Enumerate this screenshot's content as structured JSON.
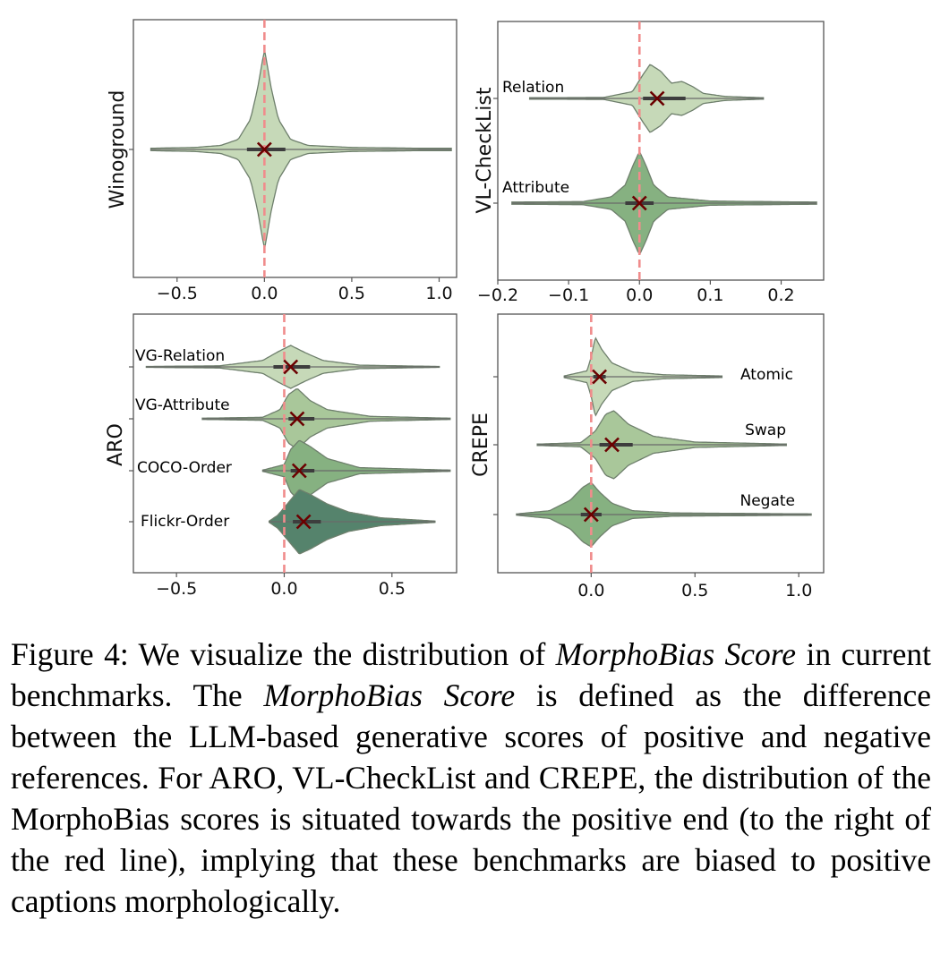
{
  "caption": {
    "label": "Figure 4:",
    "s1": " We visualize the distribution of ",
    "term1": "MorphoBias Score",
    "s2": " in current benchmarks. The ",
    "term2": "MorphoBias Score",
    "s3": " is defined as the difference between the LLM-based generative scores of positive and negative references. For ARO, VL-CheckList and CREPE, the distribution of the MorphoBias scores is situated towards the positive end (to the right of the red line), implying that these benchmarks are biased to positive captions morphologically."
  },
  "colors": {
    "reference_line": "#f08c8c",
    "axes": "#555555",
    "median_marker": "#6b0000",
    "violin_edge": "#6e7f6c",
    "shade_light": "#c6d9b8",
    "shade_mid": "#a9c79a",
    "shade_green": "#86b181",
    "shade_dark": "#55836c"
  },
  "chart_data": [
    {
      "type": "violin",
      "ylabel": "Winoground",
      "xlim": [
        -0.75,
        1.1
      ],
      "xticks": [
        -0.5,
        0.0,
        0.5,
        1.0
      ],
      "xtick_labels": [
        "−0.5",
        "0.0",
        "0.5",
        "1.0"
      ],
      "reference_line_x": 0.0,
      "grid": false,
      "series": [
        {
          "label": "",
          "shade": "shade_light",
          "median": 0.0,
          "q1": -0.1,
          "q3": 0.12,
          "min": -0.65,
          "max": 1.07,
          "density": [
            [
              -0.65,
              0.012
            ],
            [
              -0.4,
              0.02
            ],
            [
              -0.25,
              0.04
            ],
            [
              -0.15,
              0.1
            ],
            [
              -0.08,
              0.3
            ],
            [
              -0.04,
              0.6
            ],
            [
              0.0,
              1.0
            ],
            [
              0.04,
              0.6
            ],
            [
              0.08,
              0.3
            ],
            [
              0.15,
              0.1
            ],
            [
              0.25,
              0.04
            ],
            [
              0.5,
              0.02
            ],
            [
              0.75,
              0.015
            ],
            [
              1.07,
              0.008
            ]
          ]
        }
      ]
    },
    {
      "type": "violin",
      "ylabel": "VL-CheckList",
      "xlim": [
        -0.2,
        0.26
      ],
      "xticks": [
        -0.2,
        -0.1,
        0.0,
        0.1,
        0.2
      ],
      "xtick_labels": [
        "−0.2",
        "−0.1",
        "0.0",
        "0.1",
        "0.2"
      ],
      "reference_line_x": 0.0,
      "grid": false,
      "series": [
        {
          "label": "Relation",
          "shade": "shade_light",
          "median": 0.025,
          "q1": 0.005,
          "q3": 0.065,
          "min": -0.155,
          "max": 0.175,
          "density": [
            [
              -0.155,
              0.02
            ],
            [
              -0.05,
              0.03
            ],
            [
              -0.01,
              0.2
            ],
            [
              0.005,
              0.7
            ],
            [
              0.015,
              1.0
            ],
            [
              0.03,
              0.8
            ],
            [
              0.045,
              0.45
            ],
            [
              0.06,
              0.5
            ],
            [
              0.075,
              0.35
            ],
            [
              0.09,
              0.15
            ],
            [
              0.12,
              0.06
            ],
            [
              0.175,
              0.02
            ]
          ]
        },
        {
          "label": "Attribute",
          "shade": "shade_green",
          "median": 0.0,
          "q1": -0.02,
          "q3": 0.02,
          "min": -0.18,
          "max": 0.25,
          "density": [
            [
              -0.18,
              0.02
            ],
            [
              -0.08,
              0.03
            ],
            [
              -0.04,
              0.12
            ],
            [
              -0.02,
              0.35
            ],
            [
              -0.01,
              0.7
            ],
            [
              0.0,
              1.0
            ],
            [
              0.01,
              0.7
            ],
            [
              0.02,
              0.35
            ],
            [
              0.04,
              0.12
            ],
            [
              0.1,
              0.04
            ],
            [
              0.25,
              0.02
            ]
          ]
        }
      ]
    },
    {
      "type": "violin",
      "ylabel": "ARO",
      "xlim": [
        -0.7,
        0.8
      ],
      "xticks": [
        -0.5,
        0.0,
        0.5
      ],
      "xtick_labels": [
        "−0.5",
        "0.0",
        "0.5"
      ],
      "reference_line_x": 0.0,
      "grid": false,
      "series": [
        {
          "label": "VG-Relation",
          "shade": "shade_light",
          "median": 0.03,
          "q1": -0.05,
          "q3": 0.12,
          "min": -0.64,
          "max": 0.72,
          "density": [
            [
              -0.64,
              0.02
            ],
            [
              -0.3,
              0.05
            ],
            [
              -0.1,
              0.3
            ],
            [
              -0.03,
              0.7
            ],
            [
              0.03,
              1.0
            ],
            [
              0.1,
              0.65
            ],
            [
              0.18,
              0.3
            ],
            [
              0.35,
              0.08
            ],
            [
              0.72,
              0.02
            ]
          ]
        },
        {
          "label": "VG-Attribute",
          "shade": "shade_mid",
          "median": 0.06,
          "q1": 0.02,
          "q3": 0.14,
          "min": -0.38,
          "max": 0.77,
          "density": [
            [
              -0.38,
              0.02
            ],
            [
              -0.1,
              0.05
            ],
            [
              -0.02,
              0.3
            ],
            [
              0.02,
              0.8
            ],
            [
              0.06,
              1.0
            ],
            [
              0.12,
              0.6
            ],
            [
              0.2,
              0.3
            ],
            [
              0.4,
              0.08
            ],
            [
              0.77,
              0.02
            ]
          ]
        },
        {
          "label": "COCO-Order",
          "shade": "shade_green",
          "median": 0.07,
          "q1": 0.03,
          "q3": 0.14,
          "min": -0.1,
          "max": 0.77,
          "density": [
            [
              -0.1,
              0.02
            ],
            [
              0.0,
              0.2
            ],
            [
              0.03,
              0.7
            ],
            [
              0.07,
              1.0
            ],
            [
              0.12,
              0.8
            ],
            [
              0.2,
              0.4
            ],
            [
              0.35,
              0.1
            ],
            [
              0.77,
              0.02
            ]
          ]
        },
        {
          "label": "Flickr-Order",
          "shade": "shade_dark",
          "median": 0.09,
          "q1": 0.04,
          "q3": 0.17,
          "min": -0.07,
          "max": 0.7,
          "density": [
            [
              -0.07,
              0.02
            ],
            [
              -0.03,
              0.2
            ],
            [
              0.02,
              0.6
            ],
            [
              0.07,
              1.0
            ],
            [
              0.12,
              0.85
            ],
            [
              0.2,
              0.55
            ],
            [
              0.3,
              0.3
            ],
            [
              0.45,
              0.12
            ],
            [
              0.7,
              0.02
            ]
          ]
        }
      ]
    },
    {
      "type": "violin",
      "ylabel": "CREPE",
      "xlim": [
        -0.45,
        1.12
      ],
      "xticks": [
        0.0,
        0.5,
        1.0
      ],
      "xtick_labels": [
        "0.0",
        "0.5",
        "1.0"
      ],
      "reference_line_x": 0.0,
      "grid": false,
      "series": [
        {
          "label": "Atomic",
          "shade": "shade_light",
          "median": 0.04,
          "q1": 0.01,
          "q3": 0.07,
          "min": -0.13,
          "max": 0.63,
          "density": [
            [
              -0.13,
              0.02
            ],
            [
              -0.02,
              0.15
            ],
            [
              0.0,
              0.5
            ],
            [
              0.02,
              1.0
            ],
            [
              0.05,
              0.7
            ],
            [
              0.1,
              0.35
            ],
            [
              0.2,
              0.12
            ],
            [
              0.35,
              0.05
            ],
            [
              0.63,
              0.02
            ]
          ]
        },
        {
          "label": "Swap",
          "shade": "shade_mid",
          "median": 0.1,
          "q1": 0.04,
          "q3": 0.2,
          "min": -0.26,
          "max": 0.94,
          "density": [
            [
              -0.26,
              0.02
            ],
            [
              -0.05,
              0.06
            ],
            [
              0.02,
              0.4
            ],
            [
              0.07,
              0.9
            ],
            [
              0.11,
              1.0
            ],
            [
              0.18,
              0.6
            ],
            [
              0.3,
              0.25
            ],
            [
              0.5,
              0.08
            ],
            [
              0.94,
              0.02
            ]
          ]
        },
        {
          "label": "Negate",
          "shade": "shade_green",
          "median": 0.0,
          "q1": -0.05,
          "q3": 0.05,
          "min": -0.36,
          "max": 1.06,
          "density": [
            [
              -0.36,
              0.02
            ],
            [
              -0.2,
              0.12
            ],
            [
              -0.1,
              0.45
            ],
            [
              -0.04,
              0.85
            ],
            [
              0.0,
              1.0
            ],
            [
              0.04,
              0.7
            ],
            [
              0.1,
              0.35
            ],
            [
              0.2,
              0.12
            ],
            [
              0.4,
              0.05
            ],
            [
              1.06,
              0.02
            ]
          ]
        }
      ]
    }
  ]
}
